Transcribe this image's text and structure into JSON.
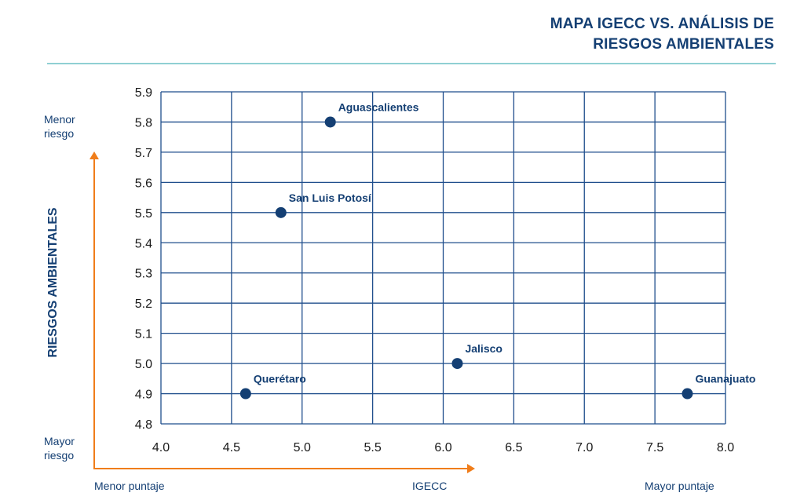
{
  "title": {
    "line1": "MAPA IGECC VS. ANÁLISIS DE",
    "line2": "RIESGOS AMBIENTALES"
  },
  "colors": {
    "accent": "#143f73",
    "arrow": "#f07d1a",
    "grid": "#1f4e8c",
    "rule": "#8fd0d3"
  },
  "y_axis": {
    "title": "RIESGOS AMBIENTALES",
    "top_note": [
      "Menor",
      "riesgo"
    ],
    "bottom_note": [
      "Mayor",
      "riesgo"
    ]
  },
  "x_axis": {
    "title": "IGECC",
    "left_note": "Menor puntaje",
    "right_note": "Mayor puntaje"
  },
  "chart_data": {
    "type": "scatter",
    "xlim": [
      4.0,
      8.0
    ],
    "ylim": [
      4.8,
      5.9
    ],
    "x_ticks": [
      "4.0",
      "4.5",
      "5.0",
      "5.5",
      "6.0",
      "6.5",
      "7.0",
      "7.5",
      "8.0"
    ],
    "y_ticks": [
      "4.8",
      "4.9",
      "5.0",
      "5.1",
      "5.2",
      "5.3",
      "5.4",
      "5.5",
      "5.6",
      "5.7",
      "5.8",
      "5.9"
    ],
    "grid": true,
    "points": [
      {
        "label": "Aguascalientes",
        "x": 5.2,
        "y": 5.8
      },
      {
        "label": "San Luis Potosí",
        "x": 4.85,
        "y": 5.5
      },
      {
        "label": "Jalisco",
        "x": 6.1,
        "y": 5.0
      },
      {
        "label": "Querétaro",
        "x": 4.6,
        "y": 4.9
      },
      {
        "label": "Guanajuato",
        "x": 7.73,
        "y": 4.9
      }
    ]
  }
}
